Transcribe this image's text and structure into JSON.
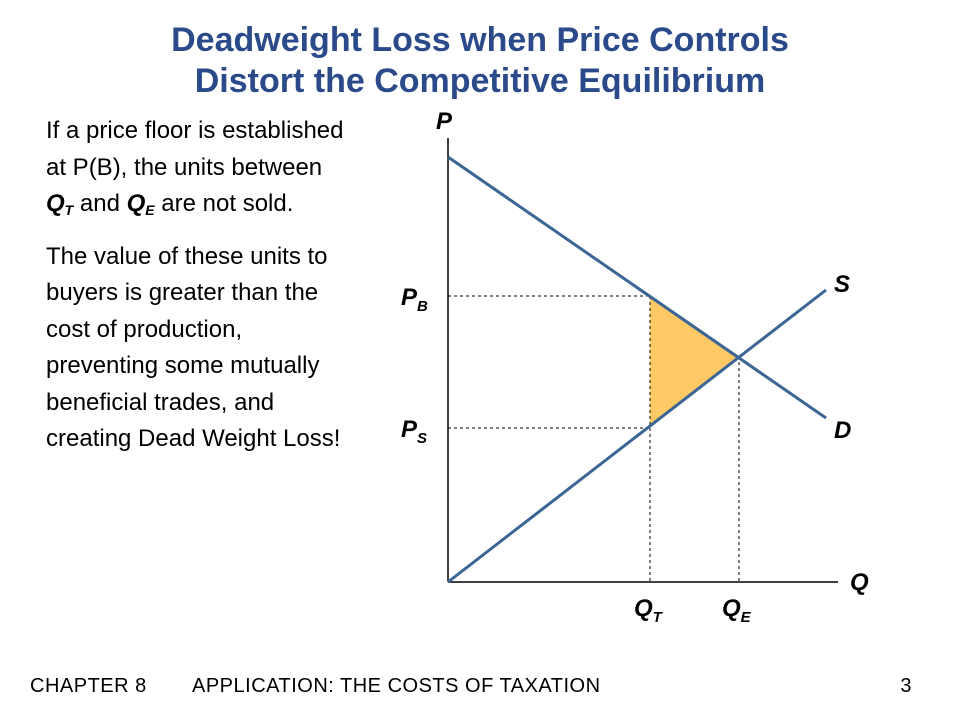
{
  "slide": {
    "title_line1": "Deadweight Loss when Price Controls",
    "title_line2": "Distort the Competitive Equilibrium",
    "paragraph1": {
      "pre": "If a price floor is established at P(B), the units between ",
      "qt_main": "Q",
      "qt_sub": "T",
      "mid": " and ",
      "qe_main": "Q",
      "qe_sub": "E",
      "post": " are not sold."
    },
    "paragraph2": "The value of these units to buyers is greater than the cost of production, preventing some mutually beneficial trades, and creating Dead Weight Loss!"
  },
  "diagram": {
    "axis_y_label": "P",
    "axis_x_label": "Q",
    "supply_label": "S",
    "demand_label": "D",
    "pb_main": "P",
    "pb_sub": "B",
    "ps_main": "P",
    "ps_sub": "S",
    "qt_main": "Q",
    "qt_sub": "T",
    "qe_main": "Q",
    "qe_sub": "E",
    "colors": {
      "curve": "#3a6595",
      "deadweight_loss": "#ffc966",
      "axis": "#000000"
    }
  },
  "footer": {
    "chapter": "CHAPTER 8",
    "topic": "APPLICATION:  THE COSTS OF TAXATION",
    "page_number": "3"
  }
}
